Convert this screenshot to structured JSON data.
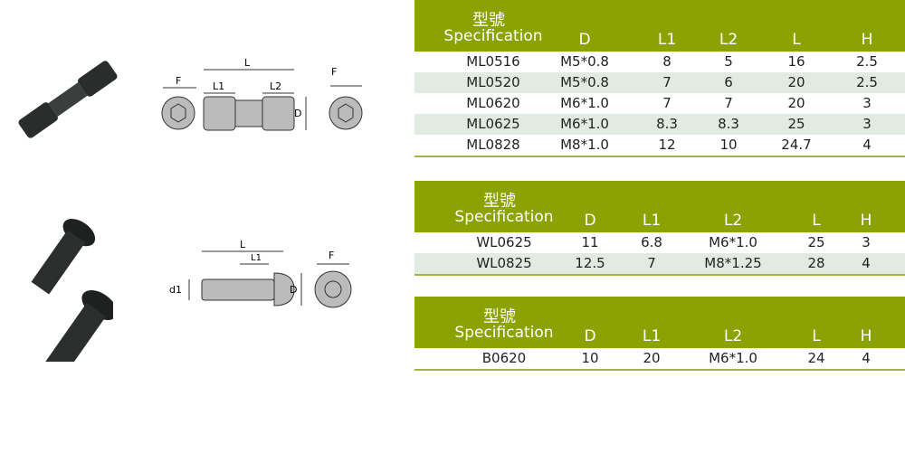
{
  "tables": [
    {
      "header": {
        "spec_zh": "型號",
        "spec_en": "Specification",
        "cols": [
          "D",
          "L1",
          "L2",
          "L",
          "H"
        ]
      },
      "rows": [
        [
          "ML0516",
          "M5*0.8",
          "8",
          "5",
          "16",
          "2.5"
        ],
        [
          "ML0520",
          "M5*0.8",
          "7",
          "6",
          "20",
          "2.5"
        ],
        [
          "ML0620",
          "M6*1.0",
          "7",
          "7",
          "20",
          "3"
        ],
        [
          "ML0625",
          "M6*1.0",
          "8.3",
          "8.3",
          "25",
          "3"
        ],
        [
          "ML0828",
          "M8*1.0",
          "12",
          "10",
          "24.7",
          "4"
        ]
      ]
    },
    {
      "header": {
        "spec_zh": "型號",
        "spec_en": "Specification",
        "cols": [
          "D",
          "L1",
          "L2",
          "L",
          "H"
        ]
      },
      "rows": [
        [
          "WL0625",
          "11",
          "6.8",
          "M6*1.0",
          "25",
          "3"
        ],
        [
          "WL0825",
          "12.5",
          "7",
          "M8*1.25",
          "28",
          "4"
        ]
      ]
    },
    {
      "header": {
        "spec_zh": "型號",
        "spec_en": "Specification",
        "cols": [
          "D",
          "L1",
          "L2",
          "L",
          "H"
        ]
      },
      "rows": [
        [
          "B0620",
          "10",
          "20",
          "M6*1.0",
          "24",
          "4"
        ]
      ]
    }
  ],
  "diagrams": {
    "d1": {
      "L": "L",
      "L1": "L1",
      "L2": "L2",
      "D": "D",
      "F": "F"
    },
    "d2": {
      "L": "L",
      "L1": "L1",
      "D": "D",
      "F": "F",
      "d1": "d1"
    }
  },
  "colors": {
    "header": "#8ba300",
    "alt_row": "#e1ebe1"
  }
}
